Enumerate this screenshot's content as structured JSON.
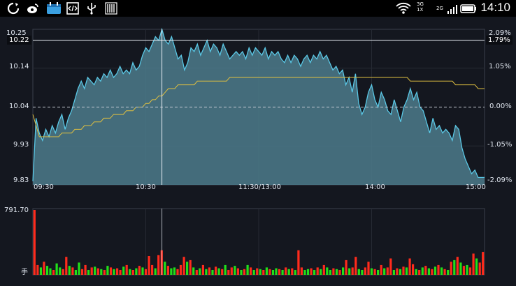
{
  "status_bar": {
    "time": "14:10",
    "network_top": "3G",
    "network_sub": "1X",
    "network_lte": "2G",
    "left_icons": [
      "sync-icon",
      "weibo-icon",
      "calendar-icon",
      "code-icon",
      "usb-icon",
      "barcode-icon"
    ],
    "right_icons": [
      "wifi-icon",
      "signal-icon",
      "battery-icon"
    ]
  },
  "colors": {
    "accent_line": "#5ac8e6",
    "area_fill": "#4c7b8c",
    "avg_line": "#e0c040",
    "volume_up": "#ff2b1c",
    "volume_down": "#21e01a",
    "crosshair": "#e8eef4"
  },
  "chart_data": [
    {
      "type": "area",
      "title": "",
      "x_ticks": [
        "09:30",
        "10:30",
        "11:30/13:00",
        "14:00",
        "15:00"
      ],
      "y_left_ticks": [
        "10.25",
        "10.14",
        "10.04",
        "9.93",
        "9.83"
      ],
      "y_right_ticks": [
        "2.09%",
        "1.05%",
        "0.00%",
        "-1.05%",
        "-2.09%"
      ],
      "ylim": [
        9.83,
        10.25
      ],
      "prev_close": 10.04,
      "crosshair": {
        "price": "10.22",
        "percent": "1.79%",
        "time_index": 40
      },
      "price": [
        9.84,
        10.01,
        9.97,
        9.95,
        9.98,
        9.96,
        9.99,
        9.97,
        10.0,
        10.02,
        9.98,
        10.01,
        10.03,
        10.06,
        10.09,
        10.11,
        10.09,
        10.12,
        10.11,
        10.1,
        10.12,
        10.11,
        10.13,
        10.12,
        10.14,
        10.12,
        10.13,
        10.15,
        10.13,
        10.14,
        10.13,
        10.16,
        10.14,
        10.15,
        10.18,
        10.2,
        10.19,
        10.21,
        10.23,
        10.22,
        10.25,
        10.22,
        10.21,
        10.23,
        10.2,
        10.17,
        10.18,
        10.14,
        10.16,
        10.2,
        10.19,
        10.21,
        10.18,
        10.2,
        10.22,
        10.19,
        10.21,
        10.2,
        10.18,
        10.21,
        10.19,
        10.17,
        10.18,
        10.19,
        10.18,
        10.19,
        10.17,
        10.2,
        10.18,
        10.2,
        10.19,
        10.18,
        10.2,
        10.17,
        10.19,
        10.18,
        10.19,
        10.17,
        10.16,
        10.18,
        10.16,
        10.18,
        10.17,
        10.15,
        10.17,
        10.18,
        10.16,
        10.18,
        10.17,
        10.19,
        10.17,
        10.18,
        10.16,
        10.14,
        10.15,
        10.13,
        10.14,
        10.1,
        10.12,
        10.08,
        10.13,
        10.05,
        10.02,
        10.04,
        10.08,
        10.1,
        10.06,
        10.04,
        10.08,
        10.06,
        10.03,
        10.02,
        10.06,
        10.03,
        10.0,
        10.04,
        10.06,
        10.09,
        10.06,
        10.08,
        10.04,
        10.03,
        10.0,
        9.97,
        10.01,
        9.98,
        9.99,
        9.97,
        9.98,
        9.97,
        9.95,
        9.99,
        9.98,
        9.93,
        9.9,
        9.88,
        9.86,
        9.87,
        9.85,
        9.85,
        9.85
      ],
      "avg": [
        10.02,
        9.99,
        9.96,
        9.96,
        9.96,
        9.96,
        9.96,
        9.96,
        9.96,
        9.97,
        9.97,
        9.97,
        9.97,
        9.98,
        9.98,
        9.98,
        9.99,
        9.99,
        9.99,
        10.0,
        10.0,
        10.0,
        10.01,
        10.01,
        10.01,
        10.02,
        10.02,
        10.02,
        10.02,
        10.03,
        10.03,
        10.03,
        10.04,
        10.04,
        10.04,
        10.05,
        10.05,
        10.06,
        10.06,
        10.07,
        10.07,
        10.08,
        10.09,
        10.09,
        10.09,
        10.1,
        10.1,
        10.1,
        10.1,
        10.1,
        10.1,
        10.11,
        10.11,
        10.11,
        10.11,
        10.11,
        10.11,
        10.11,
        10.11,
        10.11,
        10.11,
        10.12,
        10.12,
        10.12,
        10.12,
        10.12,
        10.12,
        10.12,
        10.12,
        10.12,
        10.12,
        10.12,
        10.12,
        10.12,
        10.12,
        10.12,
        10.12,
        10.12,
        10.12,
        10.12,
        10.12,
        10.12,
        10.12,
        10.12,
        10.12,
        10.12,
        10.12,
        10.12,
        10.12,
        10.12,
        10.12,
        10.12,
        10.12,
        10.12,
        10.12,
        10.12,
        10.12,
        10.12,
        10.12,
        10.12,
        10.12,
        10.12,
        10.12,
        10.12,
        10.12,
        10.12,
        10.12,
        10.12,
        10.12,
        10.12,
        10.12,
        10.12,
        10.12,
        10.12,
        10.12,
        10.12,
        10.12,
        10.11,
        10.11,
        10.11,
        10.11,
        10.11,
        10.11,
        10.11,
        10.11,
        10.11,
        10.11,
        10.11,
        10.11,
        10.11,
        10.11,
        10.1,
        10.1,
        10.1,
        10.1,
        10.1,
        10.1,
        10.1,
        10.09,
        10.09,
        10.09
      ]
    },
    {
      "type": "bar",
      "title": "",
      "ylabel": "手",
      "y_max_label": "791.70",
      "ylim": [
        0,
        791.7
      ],
      "volume": [
        791.7,
        120,
        90,
        160,
        110,
        80,
        60,
        140,
        90,
        70,
        220,
        110,
        90,
        60,
        150,
        70,
        120,
        60,
        90,
        100,
        80,
        70,
        60,
        110,
        90,
        70,
        80,
        60,
        100,
        120,
        70,
        60,
        80,
        110,
        90,
        70,
        230,
        120,
        80,
        240,
        300,
        160,
        110,
        80,
        90,
        70,
        120,
        220,
        160,
        180,
        90,
        60,
        80,
        120,
        70,
        90,
        60,
        100,
        80,
        70,
        120,
        60,
        90,
        110,
        80,
        60,
        70,
        120,
        90,
        60,
        80,
        70,
        60,
        90,
        70,
        60,
        80,
        70,
        60,
        90,
        70,
        80,
        60,
        300,
        90,
        60,
        70,
        80,
        60,
        90,
        70,
        120,
        90,
        60,
        80,
        70,
        60,
        90,
        180,
        80,
        90,
        220,
        70,
        60,
        90,
        160,
        80,
        70,
        60,
        120,
        80,
        90,
        200,
        60,
        80,
        70,
        100,
        90,
        200,
        130,
        70,
        60,
        90,
        110,
        80,
        70,
        100,
        120,
        90,
        70,
        60,
        160,
        180,
        220,
        150,
        110,
        120,
        90,
        260,
        200,
        150,
        280
      ],
      "up": [
        1,
        1,
        0,
        1,
        0,
        0,
        1,
        0,
        0,
        1,
        1,
        0,
        1,
        0,
        0,
        1,
        1,
        0,
        1,
        0,
        1,
        0,
        1,
        0,
        1,
        0,
        1,
        1,
        0,
        1,
        0,
        1,
        0,
        1,
        0,
        1,
        1,
        1,
        0,
        1,
        1,
        0,
        1,
        0,
        0,
        1,
        1,
        1,
        0,
        1,
        0,
        1,
        0,
        1,
        0,
        1,
        0,
        1,
        0,
        1,
        0,
        1,
        1,
        0,
        1,
        0,
        1,
        0,
        1,
        0,
        1,
        0,
        1,
        0,
        1,
        0,
        0,
        1,
        0,
        1,
        0,
        1,
        0,
        1,
        1,
        0,
        0,
        1,
        0,
        1,
        0,
        1,
        0,
        0,
        1,
        0,
        1,
        0,
        1,
        0,
        1,
        1,
        0,
        0,
        1,
        1,
        0,
        1,
        0,
        1,
        0,
        1,
        1,
        0,
        1,
        0,
        1,
        0,
        1,
        1,
        0,
        1,
        0,
        1,
        0,
        1,
        0,
        1,
        0,
        1,
        0,
        1,
        0,
        1,
        0,
        1,
        0,
        1,
        1,
        0,
        1,
        1
      ]
    }
  ]
}
